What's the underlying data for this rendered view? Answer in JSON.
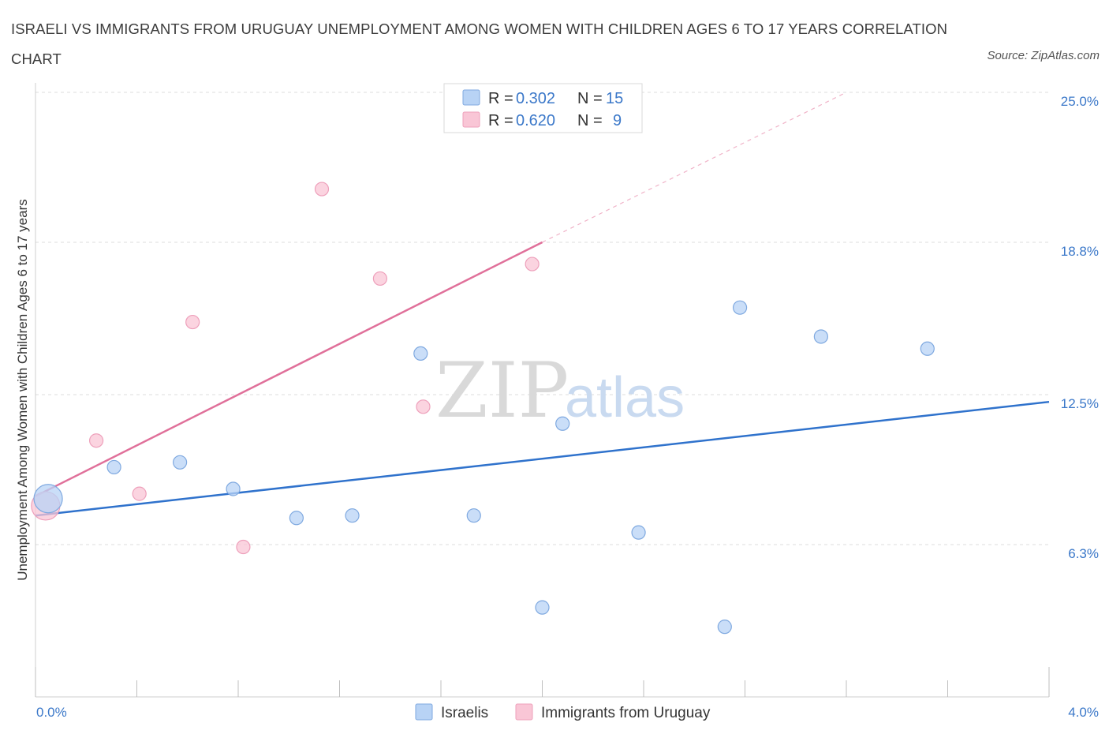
{
  "title": "ISRAELI VS IMMIGRANTS FROM URUGUAY UNEMPLOYMENT AMONG WOMEN WITH CHILDREN AGES 6 TO 17 YEARS CORRELATION CHART",
  "source": "Source: ZipAtlas.com",
  "watermark": {
    "zip": "ZIP",
    "atlas": "atlas"
  },
  "legend": {
    "r_label": "R =",
    "n_label": "N =",
    "rows": [
      {
        "name": "Israelis",
        "r": "0.302",
        "n": "15"
      },
      {
        "name": "Immigrants from Uruguay",
        "r": "0.620",
        "n": "9"
      }
    ]
  },
  "colors": {
    "israelis_fill": "#b8d3f5",
    "israelis_line": "#2f72cc",
    "uruguay_fill": "#f9c6d6",
    "uruguay_line": "#e0709a",
    "tick_text": "#3b78c9"
  },
  "chart_data": {
    "type": "scatter",
    "title": "ISRAELI VS IMMIGRANTS FROM URUGUAY UNEMPLOYMENT AMONG WOMEN WITH CHILDREN AGES 6 TO 17 YEARS CORRELATION CHART",
    "xlabel": "",
    "ylabel": "Unemployment Among Women with Children Ages 6 to 17 years",
    "xlim": [
      0,
      4.0
    ],
    "ylim": [
      0,
      25.0
    ],
    "x_tick_labels": [
      "0.0%",
      "4.0%"
    ],
    "y_ticks": [
      6.3,
      12.5,
      18.8,
      25.0
    ],
    "y_tick_labels": [
      "6.3%",
      "12.5%",
      "18.8%",
      "25.0%"
    ],
    "grid": true,
    "legend_position": "top-center",
    "series": [
      {
        "name": "Israelis",
        "points": [
          {
            "x": 0.05,
            "y": 8.2,
            "big": true
          },
          {
            "x": 0.31,
            "y": 9.5
          },
          {
            "x": 0.57,
            "y": 9.7
          },
          {
            "x": 0.78,
            "y": 8.6
          },
          {
            "x": 1.03,
            "y": 7.4
          },
          {
            "x": 1.25,
            "y": 7.5
          },
          {
            "x": 1.52,
            "y": 14.2
          },
          {
            "x": 1.73,
            "y": 7.5
          },
          {
            "x": 2.0,
            "y": 3.7
          },
          {
            "x": 2.08,
            "y": 11.3
          },
          {
            "x": 2.38,
            "y": 6.8
          },
          {
            "x": 2.72,
            "y": 2.9
          },
          {
            "x": 2.78,
            "y": 16.1
          },
          {
            "x": 3.1,
            "y": 14.9
          },
          {
            "x": 3.52,
            "y": 14.4
          }
        ],
        "trend": {
          "x0": 0.0,
          "y0": 7.5,
          "x1": 4.0,
          "y1": 12.2
        }
      },
      {
        "name": "Immigrants from Uruguay",
        "points": [
          {
            "x": 0.04,
            "y": 7.9,
            "big": true
          },
          {
            "x": 0.24,
            "y": 10.6
          },
          {
            "x": 0.41,
            "y": 8.4
          },
          {
            "x": 0.62,
            "y": 15.5
          },
          {
            "x": 0.82,
            "y": 6.2
          },
          {
            "x": 1.13,
            "y": 21.0
          },
          {
            "x": 1.36,
            "y": 17.3
          },
          {
            "x": 1.53,
            "y": 12.0
          },
          {
            "x": 1.96,
            "y": 17.9
          }
        ],
        "trend": {
          "x0": 0.0,
          "y0": 8.3,
          "x1": 2.0,
          "y1": 18.8,
          "dash_x1": 3.2,
          "dash_y1": 25.0
        }
      }
    ]
  }
}
